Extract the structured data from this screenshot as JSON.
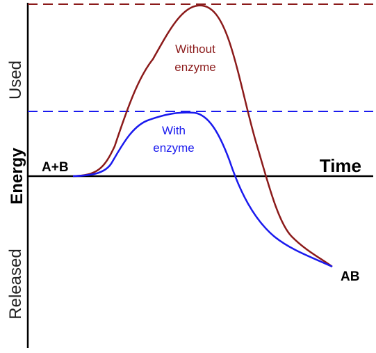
{
  "labels": {
    "used": "Used",
    "energy": "Energy",
    "released": "Released",
    "time": "Time",
    "reactants": "A+B",
    "product": "AB",
    "without_line1": "Without",
    "without_line2": "enzyme",
    "with_line1": "With",
    "with_line2": "enzyme"
  },
  "colors": {
    "axis": "#000000",
    "without_enzyme": "#8b1a1a",
    "with_enzyme": "#1a1aee",
    "text": "#222222"
  },
  "curves": {
    "without_enzyme": "high activation-energy peak",
    "with_enzyme": "lower activation-energy peak"
  }
}
